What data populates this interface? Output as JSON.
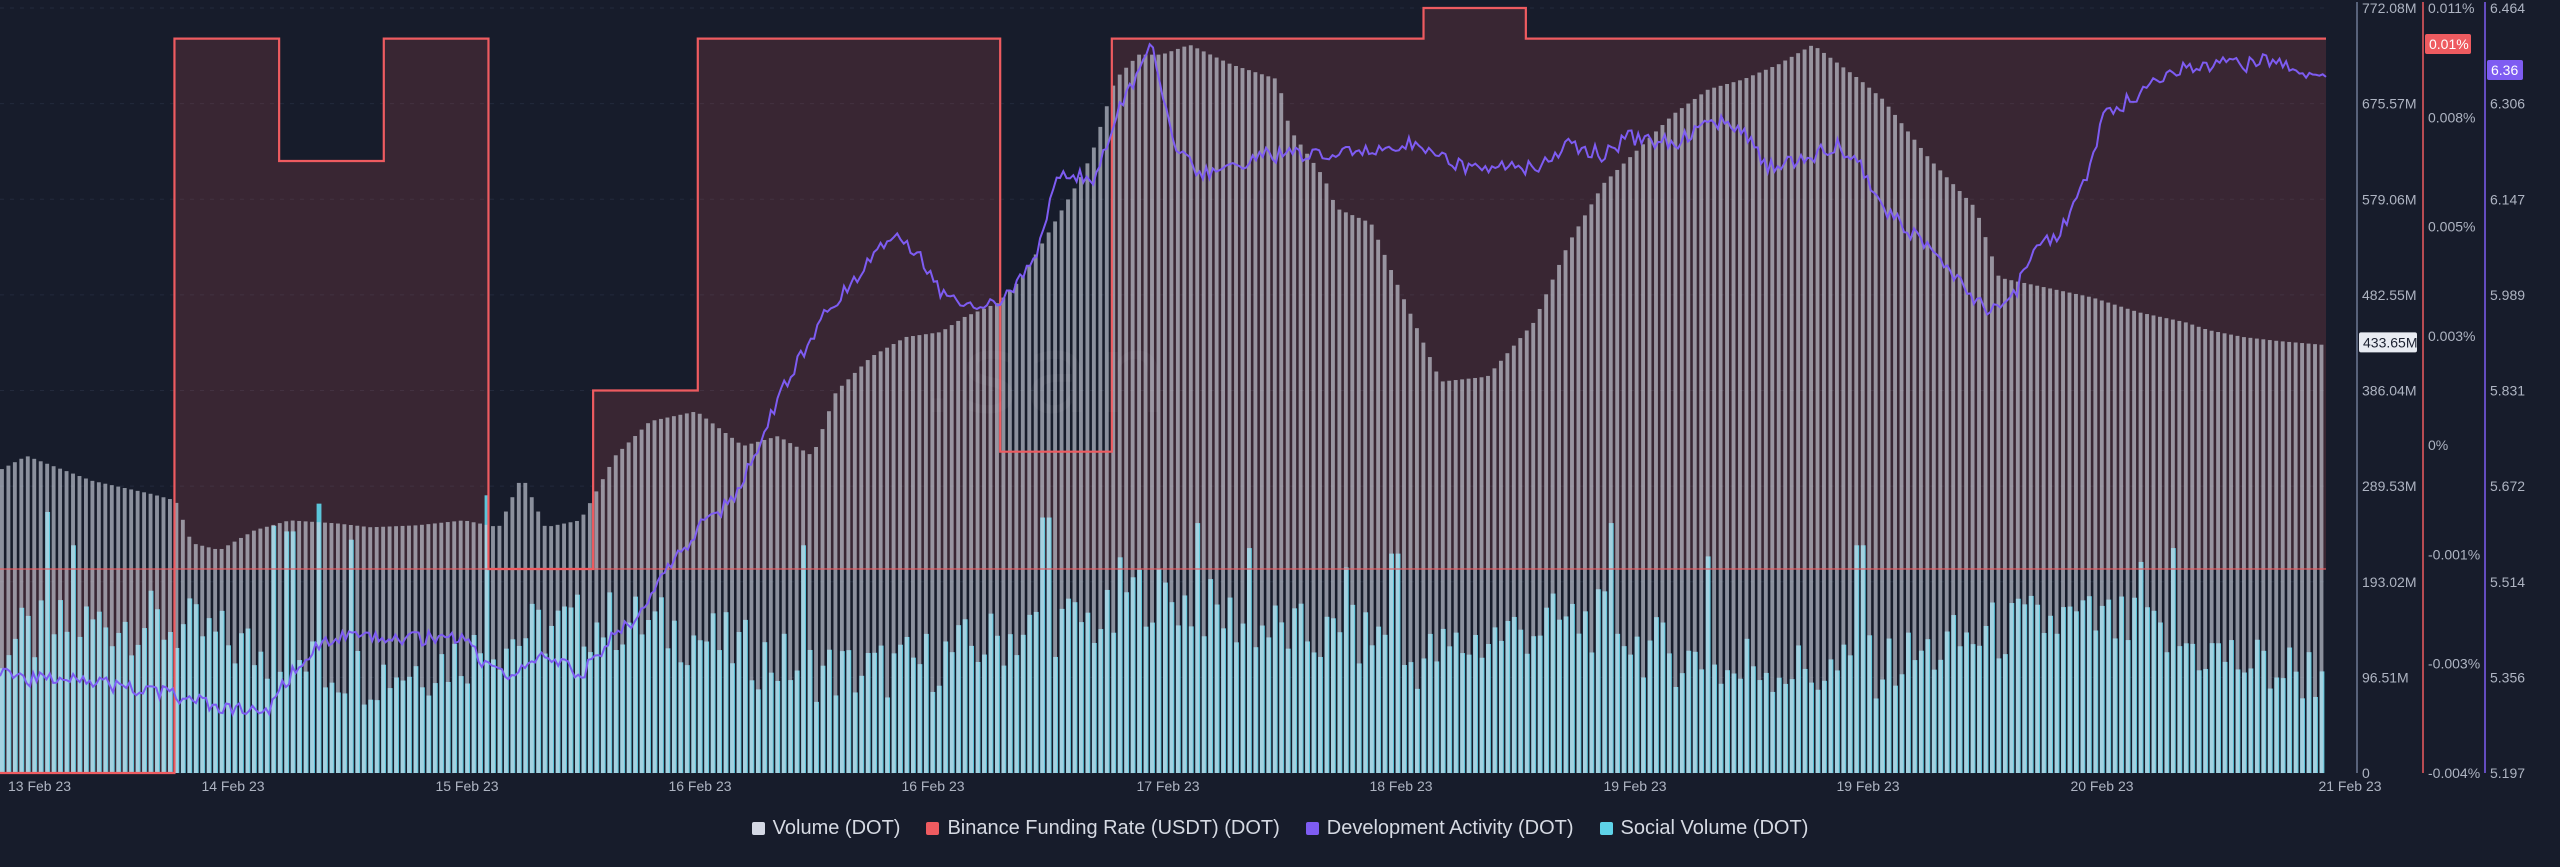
{
  "watermark": ".san",
  "chart_data": {
    "type": "bar",
    "x_ticks": [
      "13 Feb 23",
      "14 Feb 23",
      "15 Feb 23",
      "16 Feb 23",
      "16 Feb 23",
      "17 Feb 23",
      "18 Feb 23",
      "19 Feb 23",
      "19 Feb 23",
      "20 Feb 23",
      "21 Feb 23"
    ],
    "axes": {
      "volume": {
        "ticks": [
          "772.08M",
          "675.57M",
          "579.06M",
          "482.55M",
          "386.04M",
          "289.53M",
          "193.02M",
          "96.51M",
          "0"
        ],
        "max": 772.08,
        "unit": "M"
      },
      "funding": {
        "ticks": [
          "0.011%",
          "0.008%",
          "0.005%",
          "0.003%",
          "0%",
          "-0.001%",
          "-0.003%",
          "-0.004%"
        ],
        "max": 0.011,
        "min": -0.004
      },
      "dev": {
        "ticks": [
          "6.464",
          "6.306",
          "6.147",
          "5.989",
          "5.831",
          "5.672",
          "5.514",
          "5.356",
          "5.197"
        ],
        "max": 6.464,
        "min": 5.197
      }
    },
    "current_labels": {
      "volume": "433.65M",
      "funding": "0.01%",
      "dev": "6.36"
    },
    "colors": {
      "volume": "#d4d8e4",
      "funding": "#ee5b60",
      "dev": "#7e5cf2",
      "social": "#5ed3e8",
      "background": "#171c2b"
    },
    "series": [
      {
        "name": "Volume (DOT)",
        "kind": "bars",
        "keyframes_t": [
          0,
          0.012,
          0.04,
          0.065,
          0.076,
          0.083,
          0.095,
          0.11,
          0.125,
          0.145,
          0.16,
          0.18,
          0.2,
          0.215,
          0.225,
          0.235,
          0.25,
          0.256,
          0.265,
          0.28,
          0.3,
          0.32,
          0.335,
          0.35,
          0.36,
          0.375,
          0.39,
          0.405,
          0.415,
          0.43,
          0.44,
          0.455,
          0.465,
          0.47,
          0.48,
          0.49,
          0.5,
          0.512,
          0.53,
          0.55,
          0.555,
          0.57,
          0.575,
          0.59,
          0.6,
          0.62,
          0.64,
          0.66,
          0.675,
          0.69,
          0.705,
          0.72,
          0.735,
          0.75,
          0.765,
          0.78,
          0.8,
          0.81,
          0.83,
          0.85,
          0.86,
          0.88,
          0.9,
          0.92,
          0.94,
          0.95,
          0.965,
          0.98,
          1.0
        ],
        "keyframes_v": [
          305,
          320,
          295,
          282,
          275,
          232,
          225,
          245,
          255,
          252,
          248,
          250,
          255,
          248,
          300,
          248,
          255,
          280,
          320,
          355,
          365,
          330,
          340,
          320,
          385,
          420,
          440,
          445,
          460,
          475,
          500,
          560,
          600,
          625,
          700,
          725,
          725,
          735,
          715,
          700,
          650,
          600,
          570,
          555,
          500,
          395,
          400,
          455,
          535,
          595,
          630,
          665,
          690,
          700,
          715,
          735,
          700,
          680,
          620,
          570,
          500,
          490,
          480,
          465,
          455,
          447,
          440,
          436,
          432
        ]
      },
      {
        "name": "Binance Funding Rate (USDT) (DOT)",
        "kind": "step",
        "steps": [
          [
            0,
            -0.004
          ],
          [
            0.075,
            0.0104
          ],
          [
            0.12,
            0.008
          ],
          [
            0.165,
            0.0104
          ],
          [
            0.21,
            0.0
          ],
          [
            0.255,
            0.0035
          ],
          [
            0.3,
            0.0104
          ],
          [
            0.43,
            0.0023
          ],
          [
            0.478,
            0.0104
          ],
          [
            0.612,
            0.011
          ],
          [
            0.656,
            0.0104
          ],
          [
            1.0,
            0.0104
          ]
        ]
      },
      {
        "name": "Development Activity (DOT)",
        "kind": "line",
        "keyframes_t": [
          0,
          0.015,
          0.03,
          0.05,
          0.07,
          0.09,
          0.1,
          0.115,
          0.125,
          0.14,
          0.16,
          0.2,
          0.21,
          0.22,
          0.235,
          0.25,
          0.26,
          0.275,
          0.29,
          0.3,
          0.315,
          0.325,
          0.34,
          0.355,
          0.365,
          0.375,
          0.385,
          0.395,
          0.405,
          0.415,
          0.425,
          0.435,
          0.445,
          0.455,
          0.47,
          0.48,
          0.495,
          0.505,
          0.515,
          0.525,
          0.54,
          0.555,
          0.575,
          0.61,
          0.63,
          0.66,
          0.675,
          0.69,
          0.7,
          0.72,
          0.735,
          0.75,
          0.76,
          0.775,
          0.79,
          0.8,
          0.81,
          0.825,
          0.84,
          0.855,
          0.865,
          0.875,
          0.885,
          0.895,
          0.905,
          0.92,
          0.935,
          0.95,
          0.965,
          0.975,
          0.985,
          0.995,
          1.0
        ],
        "keyframes_v": [
          5.37,
          5.35,
          5.36,
          5.34,
          5.33,
          5.31,
          5.3,
          5.3,
          5.36,
          5.42,
          5.42,
          5.42,
          5.37,
          5.36,
          5.39,
          5.36,
          5.41,
          5.46,
          5.55,
          5.6,
          5.65,
          5.73,
          5.86,
          5.96,
          6.0,
          6.06,
          6.09,
          6.06,
          5.99,
          5.98,
          5.97,
          5.99,
          6.05,
          6.19,
          6.18,
          6.29,
          6.4,
          6.24,
          6.19,
          6.19,
          6.22,
          6.22,
          6.22,
          6.24,
          6.2,
          6.2,
          6.24,
          6.22,
          6.25,
          6.24,
          6.28,
          6.26,
          6.2,
          6.21,
          6.24,
          6.2,
          6.13,
          6.08,
          6.02,
          5.96,
          5.98,
          6.07,
          6.09,
          6.16,
          6.29,
          6.32,
          6.36,
          6.37,
          6.37,
          6.38,
          6.36,
          6.35,
          6.35
        ]
      },
      {
        "name": "Social Volume (DOT)",
        "kind": "bars",
        "spikes": [
          [
            0.02,
            0.94
          ],
          [
            0.032,
            0.82
          ],
          [
            0.118,
            0.89
          ],
          [
            0.125,
            0.87
          ],
          [
            0.137,
            0.97
          ],
          [
            0.152,
            0.84
          ],
          [
            0.21,
            1.0
          ],
          [
            0.345,
            0.82
          ],
          [
            0.45,
            0.92
          ],
          [
            0.515,
            0.9
          ],
          [
            0.537,
            0.81
          ],
          [
            0.58,
            0.74
          ],
          [
            0.6,
            0.79
          ],
          [
            0.694,
            0.9
          ],
          [
            0.735,
            0.78
          ],
          [
            0.8,
            0.82
          ],
          [
            0.92,
            0.76
          ],
          [
            0.935,
            0.81
          ]
        ]
      }
    ]
  },
  "legend": [
    {
      "label": "Volume (DOT)",
      "color": "#d4d8e4"
    },
    {
      "label": "Binance Funding Rate (USDT) (DOT)",
      "color": "#ee5b60"
    },
    {
      "label": "Development Activity (DOT)",
      "color": "#7e5cf2"
    },
    {
      "label": "Social Volume (DOT)",
      "color": "#5ed3e8"
    }
  ]
}
